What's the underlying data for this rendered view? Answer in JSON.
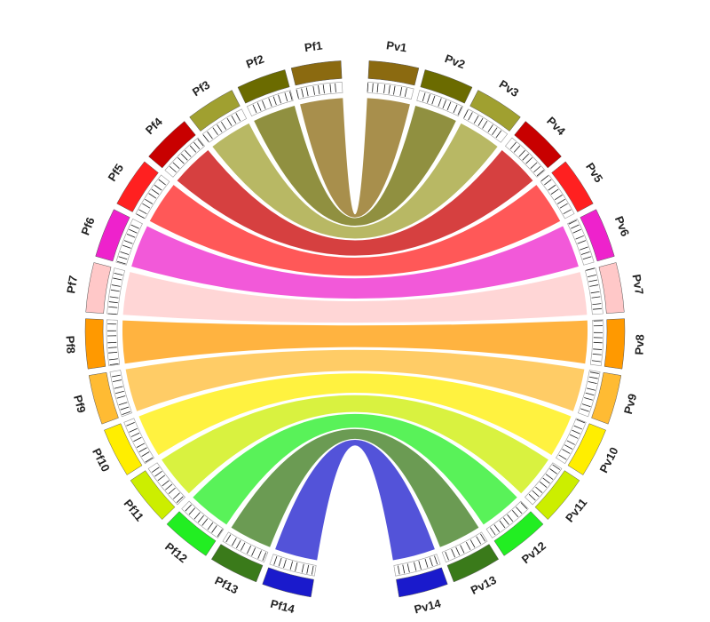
{
  "left": [
    {
      "label": "Pf1",
      "color": "#8b6a10"
    },
    {
      "label": "Pf2",
      "color": "#6b6b00"
    },
    {
      "label": "Pf3",
      "color": "#a0a030"
    },
    {
      "label": "Pf4",
      "color": "#c80000"
    },
    {
      "label": "Pf5",
      "color": "#ff2020"
    },
    {
      "label": "Pf6",
      "color": "#ee22cc"
    },
    {
      "label": "Pf7",
      "color": "#ffc8c8"
    },
    {
      "label": "Pf8",
      "color": "#ff9900"
    },
    {
      "label": "Pf9",
      "color": "#ffbb33"
    },
    {
      "label": "Pf10",
      "color": "#ffee00"
    },
    {
      "label": "Pf11",
      "color": "#ccee00"
    },
    {
      "label": "Pf12",
      "color": "#22ee22"
    },
    {
      "label": "Pf13",
      "color": "#3a7a1a"
    },
    {
      "label": "Pf14",
      "color": "#1a1acc"
    }
  ],
  "right": [
    {
      "label": "Pv1",
      "color": "#8b6a10"
    },
    {
      "label": "Pv2",
      "color": "#6b6b00"
    },
    {
      "label": "Pv3",
      "color": "#a0a030"
    },
    {
      "label": "Pv4",
      "color": "#c80000"
    },
    {
      "label": "Pv5",
      "color": "#ff2020"
    },
    {
      "label": "Pv6",
      "color": "#ee22cc"
    },
    {
      "label": "Pv7",
      "color": "#ffc8c8"
    },
    {
      "label": "Pv8",
      "color": "#ff9900"
    },
    {
      "label": "Pv9",
      "color": "#ffbb33"
    },
    {
      "label": "Pv10",
      "color": "#ffee00"
    },
    {
      "label": "Pv11",
      "color": "#ccee00"
    },
    {
      "label": "Pv12",
      "color": "#22ee22"
    },
    {
      "label": "Pv13",
      "color": "#3a7a1a"
    },
    {
      "label": "Pv14",
      "color": "#1a1acc"
    }
  ]
}
